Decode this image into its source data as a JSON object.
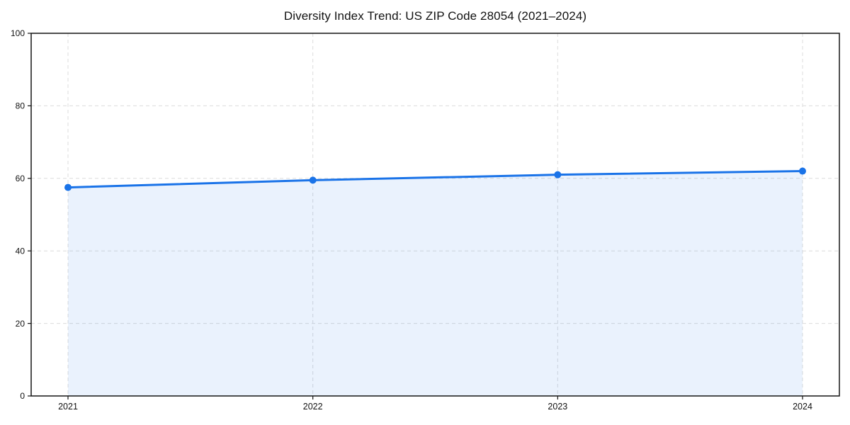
{
  "chart_data": {
    "type": "area",
    "title": "Diversity Index Trend: US ZIP Code 28054 (2021–2024)",
    "x": [
      "2021",
      "2022",
      "2023",
      "2024"
    ],
    "series": [
      {
        "name": "Diversity Index",
        "values": [
          57.5,
          59.5,
          61,
          62
        ]
      }
    ],
    "xlabel": "",
    "ylabel": "",
    "ylim": [
      0,
      100
    ],
    "yticks": [
      0,
      20,
      40,
      60,
      80,
      100
    ],
    "grid": true,
    "grid_style": "dashed",
    "legend": false,
    "colors": {
      "line": "#1a73e8",
      "marker": "#1a73e8",
      "fill_base": "#1a73e8",
      "fill_opacity": 0.09,
      "grid": "#dcdcdc",
      "spine": "#141414",
      "tick_label": "#111111",
      "background": "#ffffff"
    }
  }
}
